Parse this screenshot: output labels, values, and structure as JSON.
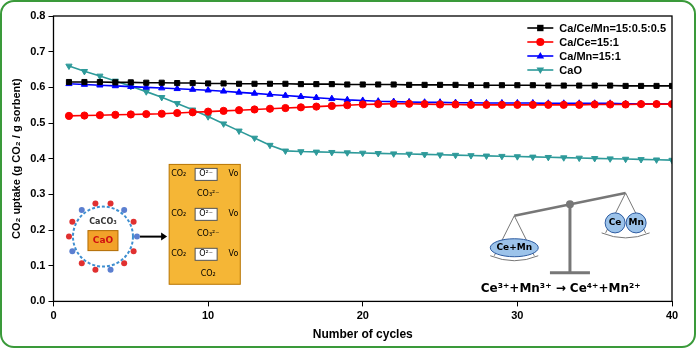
{
  "chart_data": {
    "type": "line",
    "x_label": "Number of cycles",
    "y_label": "CO₂ uptake (g CO₂ / g sorbent)",
    "x": [
      1,
      2,
      3,
      4,
      5,
      6,
      7,
      8,
      9,
      10,
      11,
      12,
      13,
      14,
      15,
      16,
      17,
      18,
      19,
      20,
      21,
      22,
      23,
      24,
      25,
      26,
      27,
      28,
      29,
      30,
      31,
      32,
      33,
      34,
      35,
      36,
      37,
      38,
      39,
      40
    ],
    "series": [
      {
        "name": "Ca/Ce/Mn=15:0.5:0.5",
        "color": "#000000",
        "marker": "square",
        "line_style": "solid",
        "values": [
          0.615,
          0.615,
          0.615,
          0.614,
          0.614,
          0.613,
          0.613,
          0.612,
          0.612,
          0.611,
          0.611,
          0.61,
          0.61,
          0.61,
          0.61,
          0.609,
          0.609,
          0.609,
          0.608,
          0.608,
          0.608,
          0.608,
          0.607,
          0.607,
          0.607,
          0.607,
          0.606,
          0.606,
          0.606,
          0.606,
          0.606,
          0.605,
          0.605,
          0.605,
          0.605,
          0.605,
          0.604,
          0.604,
          0.604,
          0.604
        ]
      },
      {
        "name": "Ca/Ce=15:1",
        "color": "#ff0000",
        "marker": "circle",
        "line_style": "solid",
        "values": [
          0.52,
          0.521,
          0.522,
          0.523,
          0.524,
          0.525,
          0.526,
          0.528,
          0.53,
          0.532,
          0.534,
          0.536,
          0.538,
          0.54,
          0.542,
          0.544,
          0.546,
          0.548,
          0.55,
          0.552,
          0.553,
          0.554,
          0.554,
          0.553,
          0.552,
          0.552,
          0.551,
          0.551,
          0.551,
          0.551,
          0.551,
          0.551,
          0.551,
          0.551,
          0.552,
          0.552,
          0.552,
          0.553,
          0.553,
          0.553
        ]
      },
      {
        "name": "Ca/Mn=15:1",
        "color": "#0000ff",
        "marker": "triangle",
        "line_style": "solid",
        "values": [
          0.61,
          0.608,
          0.606,
          0.604,
          0.602,
          0.6,
          0.598,
          0.596,
          0.594,
          0.592,
          0.589,
          0.586,
          0.583,
          0.58,
          0.577,
          0.574,
          0.571,
          0.568,
          0.565,
          0.563,
          0.561,
          0.56,
          0.559,
          0.558,
          0.558,
          0.557,
          0.557,
          0.556,
          0.556,
          0.556,
          0.556,
          0.555,
          0.555,
          0.555,
          0.555,
          0.555,
          0.554,
          0.554,
          0.554,
          0.554
        ]
      },
      {
        "name": "CaO",
        "color": "#2e9a9a",
        "marker": "triangle-down",
        "line_style": "solid",
        "values": [
          0.66,
          0.645,
          0.632,
          0.618,
          0.603,
          0.588,
          0.572,
          0.555,
          0.537,
          0.518,
          0.498,
          0.478,
          0.458,
          0.438,
          0.422,
          0.42,
          0.419,
          0.418,
          0.417,
          0.416,
          0.415,
          0.414,
          0.413,
          0.412,
          0.411,
          0.41,
          0.409,
          0.408,
          0.407,
          0.406,
          0.405,
          0.404,
          0.403,
          0.402,
          0.401,
          0.4,
          0.399,
          0.398,
          0.397,
          0.396
        ]
      }
    ],
    "xlim": [
      0,
      40
    ],
    "xticks": [
      0,
      10,
      20,
      30,
      40
    ],
    "ylim": [
      0,
      0.8
    ],
    "yticks": [
      {
        "value": 0,
        "label": "0.0"
      },
      0.1,
      0.2,
      0.3,
      0.4,
      0.5,
      0.6,
      0.7,
      0.8
    ],
    "grid": false,
    "legend": "top-right",
    "annotations": {
      "particle": {
        "shell": "CaCO₃",
        "core": "CaO"
      },
      "surface": [
        [
          "CO₂",
          "O²⁻",
          "Vo"
        ],
        [
          "CO₃²⁻"
        ],
        [
          "CO₂",
          "O²⁻",
          "Vo"
        ],
        [
          "CO₃²⁻"
        ],
        [
          "CO₂",
          "O²⁻",
          "Vo"
        ],
        [
          "CO₂"
        ]
      ],
      "balance": {
        "left": "Ce+Mn",
        "right": [
          "Ce",
          "Mn"
        ]
      },
      "equation": "Ce³⁺+Mn³⁺ → Ce⁴⁺+Mn²⁺"
    }
  }
}
